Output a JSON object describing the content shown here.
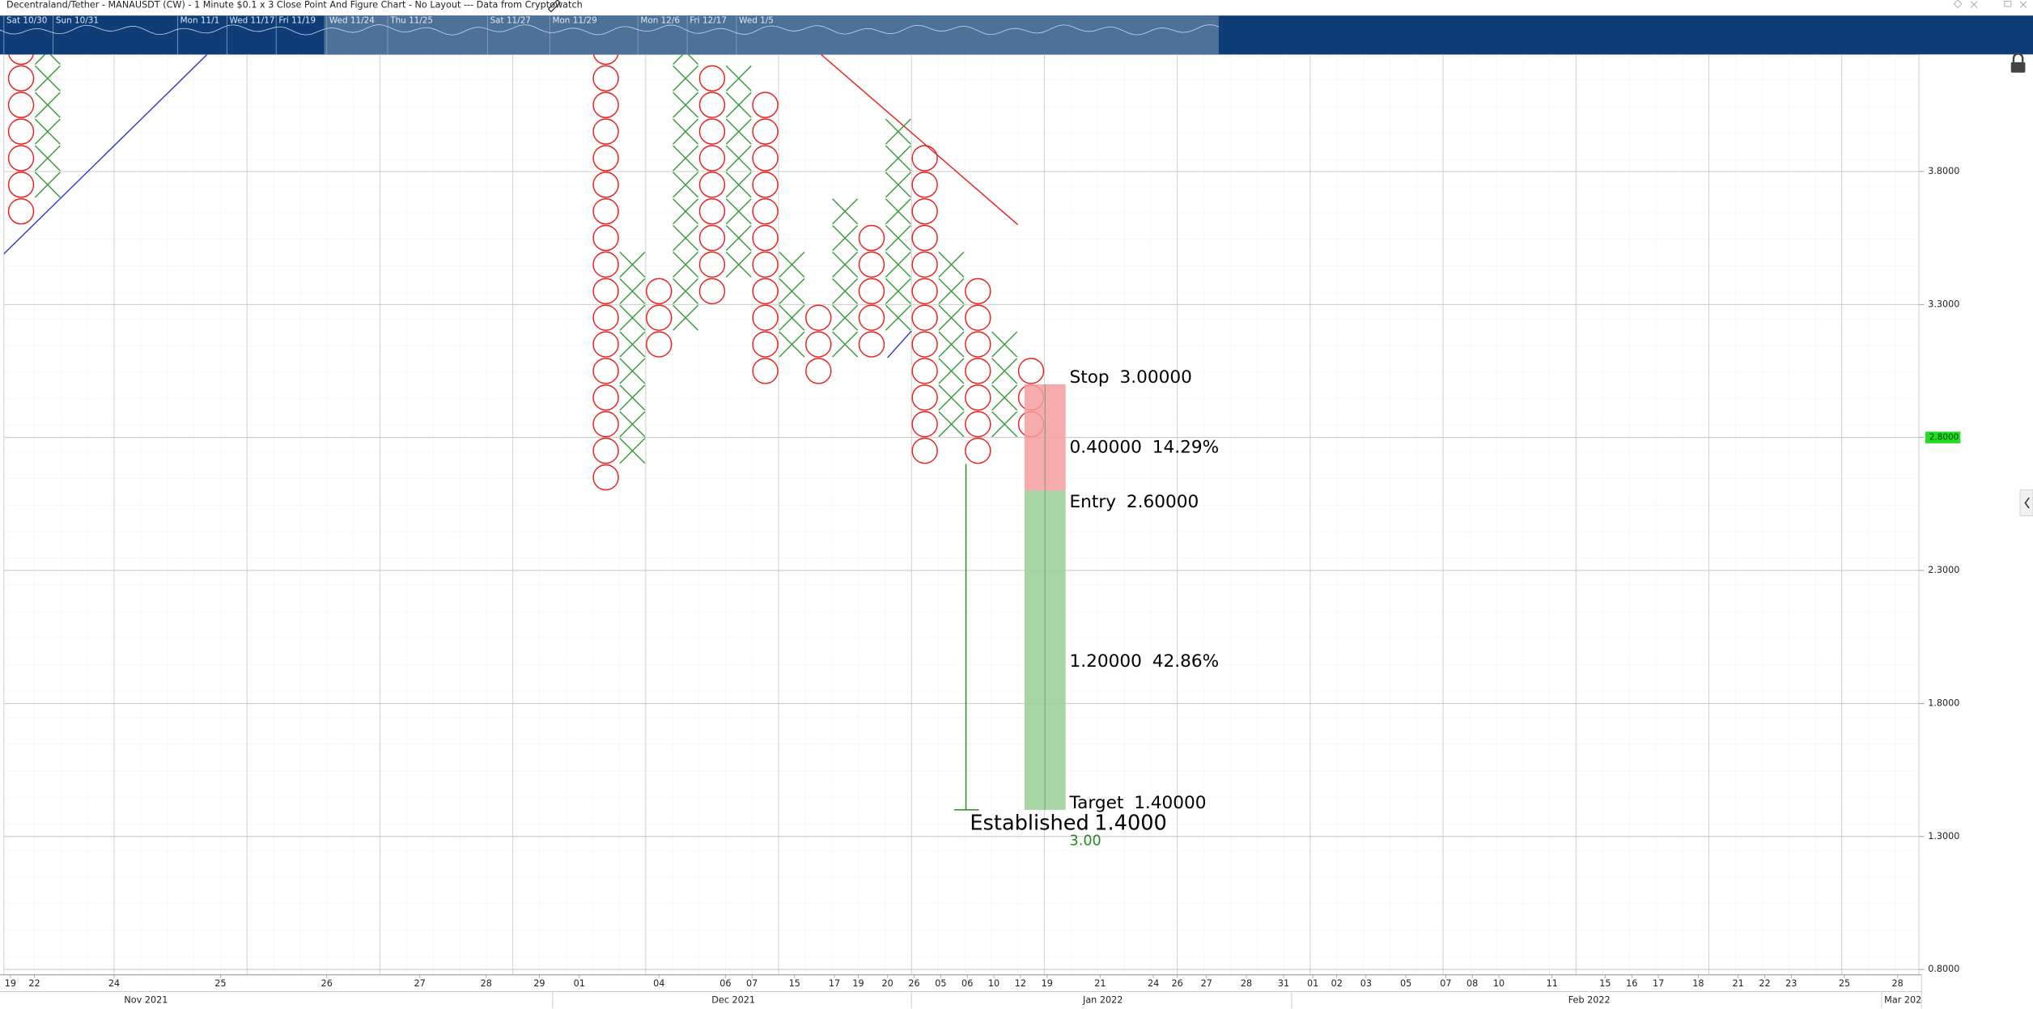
{
  "header": {
    "title": "Decentraland/Tether - MANAUSDT (CW) - 1 Minute $0.1 x 3 Close Point And Figure Chart - No Layout --- Data from Cryptowatch",
    "navigator_labels": [
      "Sat 10/30",
      "Sun 10/31",
      "Mon 11/1",
      "Wed 11/17",
      "Fri 11/19",
      "Wed 11/24",
      "Thu 11/25",
      "Sat 11/27",
      "Mon 11/29",
      "Mon 12/6",
      "Fri 12/17",
      "Wed 1/5"
    ]
  },
  "chart_data": {
    "type": "point-and-figure",
    "box_size": 0.1,
    "x_color": "#3a9a3a",
    "o_color": "#e8201e",
    "columns": [
      {
        "kind": "O",
        "x": 0.5,
        "low": 3.6,
        "high": 4.3
      },
      {
        "kind": "X",
        "x": 1.5,
        "low": 3.7,
        "high": 4.3
      },
      {
        "kind": "O",
        "x": 22.5,
        "low": 2.6,
        "high": 4.3
      },
      {
        "kind": "X",
        "x": 23.5,
        "low": 2.7,
        "high": 3.5
      },
      {
        "kind": "O",
        "x": 24.5,
        "low": 3.1,
        "high": 3.4
      },
      {
        "kind": "X",
        "x": 25.5,
        "low": 3.2,
        "high": 4.3
      },
      {
        "kind": "O",
        "x": 26.5,
        "low": 3.3,
        "high": 4.2
      },
      {
        "kind": "X",
        "x": 27.5,
        "low": 3.4,
        "high": 4.2
      },
      {
        "kind": "O",
        "x": 28.5,
        "low": 3.0,
        "high": 4.1
      },
      {
        "kind": "X",
        "x": 29.5,
        "low": 3.1,
        "high": 3.5
      },
      {
        "kind": "O",
        "x": 30.5,
        "low": 3.0,
        "high": 3.3
      },
      {
        "kind": "X",
        "x": 31.5,
        "low": 3.1,
        "high": 3.7
      },
      {
        "kind": "O",
        "x": 32.5,
        "low": 3.1,
        "high": 3.6
      },
      {
        "kind": "X",
        "x": 33.5,
        "low": 3.2,
        "high": 4.0
      },
      {
        "kind": "O",
        "x": 34.5,
        "low": 2.7,
        "high": 3.9
      },
      {
        "kind": "X",
        "x": 35.5,
        "low": 2.8,
        "high": 3.5
      },
      {
        "kind": "O",
        "x": 36.5,
        "low": 2.7,
        "high": 3.4
      },
      {
        "kind": "X",
        "x": 37.5,
        "low": 2.8,
        "high": 3.2
      },
      {
        "kind": "O",
        "x": 38.5,
        "low": 2.8,
        "high": 3.1
      }
    ],
    "xlim": [
      0,
      72
    ],
    "ylim": [
      0.78,
      4.24
    ],
    "yticks": [
      {
        "value": 0.8,
        "label": "0.8000"
      },
      {
        "value": 1.3,
        "label": "1.3000"
      },
      {
        "value": 1.8,
        "label": "1.8000"
      },
      {
        "value": 2.3,
        "label": "2.3000"
      },
      {
        "value": 2.8,
        "label": "2.8000"
      },
      {
        "value": 3.3,
        "label": "3.3000"
      },
      {
        "value": 3.8,
        "label": "3.8000"
      }
    ],
    "xticks": [
      {
        "value": 0.1,
        "label": "19"
      },
      {
        "value": 1.0,
        "label": "22"
      },
      {
        "value": 4.0,
        "label": "24"
      },
      {
        "value": 8.0,
        "label": "25"
      },
      {
        "value": 12.0,
        "label": "26"
      },
      {
        "value": 15.5,
        "label": "27"
      },
      {
        "value": 18.0,
        "label": "28"
      },
      {
        "value": 20.0,
        "label": "29"
      },
      {
        "value": 21.5,
        "label": "01"
      },
      {
        "value": 24.5,
        "label": "04"
      },
      {
        "value": 27.0,
        "label": "06"
      },
      {
        "value": 28.0,
        "label": "07"
      },
      {
        "value": 29.6,
        "label": "15"
      },
      {
        "value": 31.1,
        "label": "17"
      },
      {
        "value": 32.0,
        "label": "19"
      },
      {
        "value": 33.1,
        "label": "20"
      },
      {
        "value": 34.1,
        "label": "26"
      },
      {
        "value": 35.1,
        "label": "05"
      },
      {
        "value": 36.1,
        "label": "06"
      },
      {
        "value": 37.1,
        "label": "10"
      },
      {
        "value": 38.1,
        "label": "12"
      },
      {
        "value": 39.1,
        "label": "19"
      },
      {
        "value": 41.1,
        "label": "21"
      },
      {
        "value": 43.1,
        "label": "24"
      },
      {
        "value": 44.0,
        "label": "26"
      },
      {
        "value": 45.1,
        "label": "27"
      },
      {
        "value": 46.6,
        "label": "28"
      },
      {
        "value": 48.0,
        "label": "31"
      },
      {
        "value": 49.1,
        "label": "01"
      },
      {
        "value": 50.0,
        "label": "02"
      },
      {
        "value": 51.1,
        "label": "03"
      },
      {
        "value": 52.6,
        "label": "05"
      },
      {
        "value": 54.1,
        "label": "07"
      },
      {
        "value": 55.1,
        "label": "08"
      },
      {
        "value": 56.1,
        "label": "10"
      },
      {
        "value": 58.1,
        "label": "11"
      },
      {
        "value": 60.1,
        "label": "15"
      },
      {
        "value": 61.1,
        "label": "16"
      },
      {
        "value": 62.1,
        "label": "17"
      },
      {
        "value": 63.6,
        "label": "18"
      },
      {
        "value": 65.1,
        "label": "21"
      },
      {
        "value": 66.1,
        "label": "22"
      },
      {
        "value": 67.1,
        "label": "23"
      },
      {
        "value": 69.1,
        "label": "25"
      },
      {
        "value": 71.1,
        "label": "28"
      }
    ],
    "x_grid": [
      4,
      9,
      14,
      19,
      24,
      29,
      34,
      39,
      44,
      49,
      54,
      59,
      64,
      69
    ],
    "months": [
      {
        "value": 5.2,
        "label": "Nov 2021"
      },
      {
        "value": 27.3,
        "label": "Dec 2021"
      },
      {
        "value": 41.2,
        "label": "Jan 2022"
      },
      {
        "value": 59.5,
        "label": "Feb 2022"
      },
      {
        "value": 71.3,
        "label": "Mar 202"
      }
    ],
    "month_dividers": [
      20.5,
      34.0,
      48.3,
      70.5
    ],
    "trend_lines": [
      {
        "color": "#3b3bc8",
        "x": [
          -0.15,
          7.5
        ],
        "y": [
          3.49,
          4.24
        ]
      },
      {
        "color": "#e8201e",
        "x": [
          30.6,
          38.0
        ],
        "y": [
          4.24,
          3.6
        ]
      },
      {
        "color": "#3b3bc8",
        "x": [
          33.1,
          34.0
        ],
        "y": [
          3.1,
          3.2
        ]
      }
    ],
    "risk_reward": {
      "x": [
        38.25,
        39.8
      ],
      "risk_color": "#f59d9d",
      "reward_color": "#9fd09a",
      "stop": {
        "name": "Stop",
        "value": 3.0,
        "value_label": "3.00000"
      },
      "entry": {
        "name": "Entry",
        "value": 2.6,
        "value_label": "2.60000"
      },
      "target": {
        "name": "Target",
        "value": 1.4,
        "value_label": "1.40000"
      },
      "risk": {
        "value": 0.4,
        "value_label": "0.40000",
        "percent": 14.29,
        "percent_label": "14.29%"
      },
      "reward": {
        "value": 1.2,
        "value_label": "1.20000",
        "percent": 42.86,
        "percent_label": "42.86%"
      }
    },
    "count": {
      "x": 36.05,
      "top": 2.7,
      "value": 1.4,
      "name": "Established",
      "value_label": "1.4000",
      "ratio": 3.0,
      "ratio_label": "3.00",
      "color": "#2a8a2a"
    },
    "last_price": {
      "value": 2.8,
      "label": "2.8000",
      "color": "#22dd22"
    }
  }
}
